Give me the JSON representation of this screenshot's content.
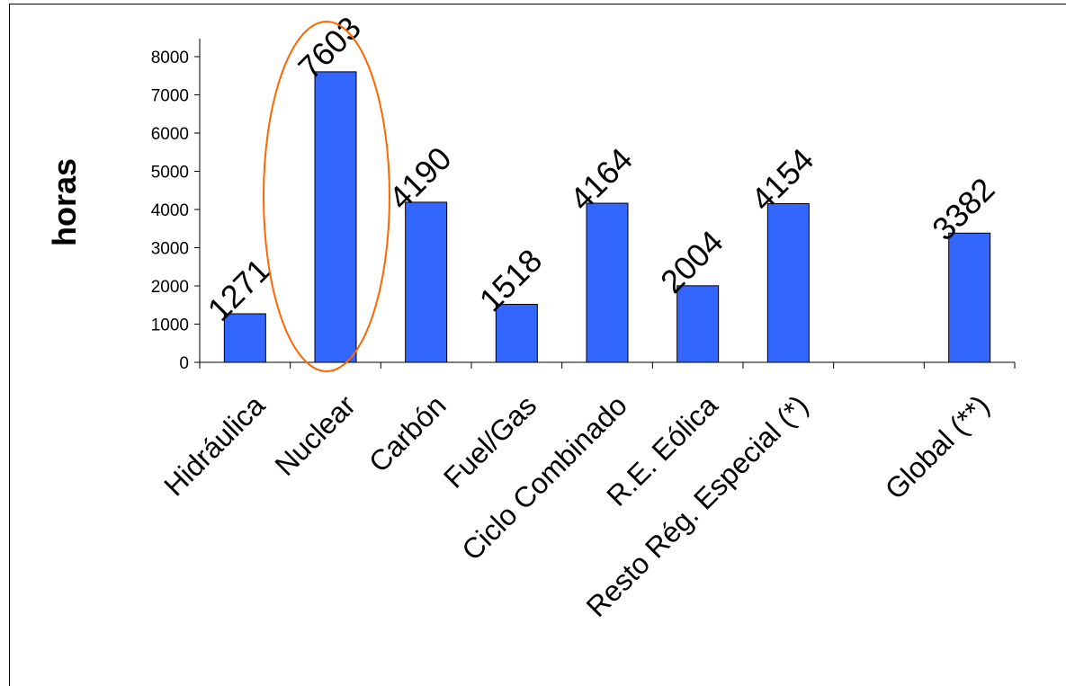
{
  "chart_data": {
    "type": "bar",
    "title": "",
    "xlabel": "",
    "ylabel": "horas",
    "ylim": [
      0,
      8000
    ],
    "yticks": [
      "0",
      "1000",
      "2000",
      "3000",
      "4000",
      "5000",
      "6000",
      "7000",
      "8000"
    ],
    "categories": [
      "Hidráulica",
      "Nuclear",
      "Carbón",
      "Fuel/Gas",
      "Ciclo Combinado",
      "R.E. Eólica",
      "Resto Rég. Especial (*)",
      "",
      "Global (**)"
    ],
    "values": [
      1271,
      7603,
      4190,
      1518,
      4164,
      2004,
      4154,
      null,
      3382
    ],
    "data_labels": [
      "1271",
      "7603",
      "4190",
      "1518",
      "4164",
      "2004",
      "4154",
      "",
      "3382"
    ],
    "bar_color": "#3366ff",
    "highlight_color": "#ff6600",
    "highlighted_category": "Nuclear",
    "grid": false,
    "legend": "none"
  }
}
